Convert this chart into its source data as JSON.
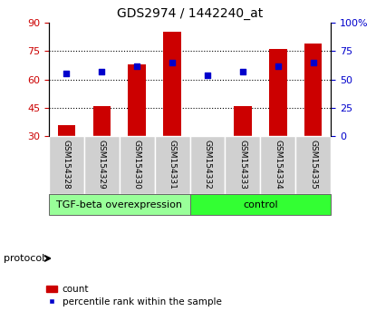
{
  "title": "GDS2974 / 1442240_at",
  "samples": [
    "GSM154328",
    "GSM154329",
    "GSM154330",
    "GSM154331",
    "GSM154332",
    "GSM154333",
    "GSM154334",
    "GSM154335"
  ],
  "count_values": [
    36,
    46,
    68,
    85,
    30,
    46,
    76,
    79
  ],
  "percentile_values": [
    55,
    57,
    62,
    65,
    54,
    57,
    62,
    65
  ],
  "ylim_left": [
    30,
    90
  ],
  "yticks_left": [
    30,
    45,
    60,
    75,
    90
  ],
  "ylim_right": [
    0,
    100
  ],
  "yticks_right": [
    0,
    25,
    50,
    75,
    100
  ],
  "bar_color": "#cc0000",
  "dot_color": "#0000cc",
  "groups": [
    {
      "label": "TGF-beta overexpression",
      "color": "#99ff99",
      "indices": [
        0,
        1,
        2,
        3
      ]
    },
    {
      "label": "control",
      "color": "#33ff33",
      "indices": [
        4,
        5,
        6,
        7
      ]
    }
  ],
  "protocol_label": "protocol",
  "legend_count": "count",
  "legend_percentile": "percentile rank within the sample",
  "bar_width": 0.5,
  "dot_size": 25,
  "grid_color": "#000000",
  "tick_color_left": "#cc0000",
  "tick_color_right": "#0000cc",
  "sample_box_color": "#d0d0d0",
  "figsize": [
    4.15,
    3.54
  ],
  "dpi": 100
}
